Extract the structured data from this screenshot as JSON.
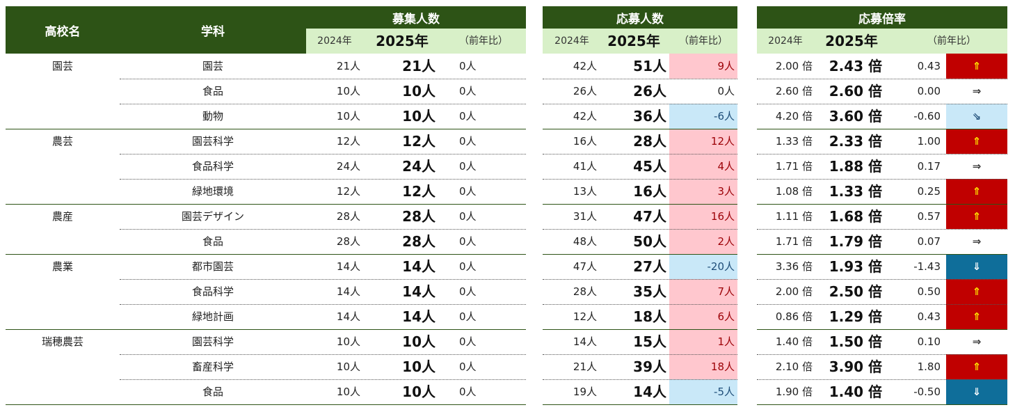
{
  "headers": {
    "school": "高校名",
    "dept": "学科",
    "recruit": "募集人数",
    "applicants": "応募人数",
    "ratio": "応募倍率",
    "y2024": "2024年",
    "y2025": "2025年",
    "yoy": "（前年比）"
  },
  "colors": {
    "header_bg": "#2d5316",
    "subheader_bg": "#d8f0c8",
    "increase_bg": "#ffc7ce",
    "decrease_bg": "#c9e8f8",
    "ratio_up_bg": "#c00000",
    "ratio_down_bg": "#0f6e9a"
  },
  "rows": [
    {
      "school": "園芸",
      "dept": "園芸",
      "r24": "21人",
      "r25": "21人",
      "rd": "0人",
      "a24": "42人",
      "a25": "51人",
      "ad": "9人",
      "at": "up",
      "x24": "2.00 倍",
      "x25": "2.43 倍",
      "xd": "0.43",
      "arrow": "⇑",
      "xt": "up"
    },
    {
      "school": "",
      "dept": "食品",
      "r24": "10人",
      "r25": "10人",
      "rd": "0人",
      "a24": "26人",
      "a25": "26人",
      "ad": "0人",
      "at": "none",
      "x24": "2.60 倍",
      "x25": "2.60 倍",
      "xd": "0.00",
      "arrow": "⇒",
      "xt": "none"
    },
    {
      "school": "",
      "dept": "動物",
      "r24": "10人",
      "r25": "10人",
      "rd": "0人",
      "a24": "42人",
      "a25": "36人",
      "ad": "-6人",
      "at": "down",
      "x24": "4.20 倍",
      "x25": "3.60 倍",
      "xd": "-0.60",
      "arrow": "⇘",
      "xt": "light"
    },
    {
      "school": "農芸",
      "dept": "園芸科学",
      "r24": "12人",
      "r25": "12人",
      "rd": "0人",
      "a24": "16人",
      "a25": "28人",
      "ad": "12人",
      "at": "up",
      "x24": "1.33 倍",
      "x25": "2.33 倍",
      "xd": "1.00",
      "arrow": "⇑",
      "xt": "up"
    },
    {
      "school": "",
      "dept": "食品科学",
      "r24": "24人",
      "r25": "24人",
      "rd": "0人",
      "a24": "41人",
      "a25": "45人",
      "ad": "4人",
      "at": "up",
      "x24": "1.71 倍",
      "x25": "1.88 倍",
      "xd": "0.17",
      "arrow": "⇒",
      "xt": "none"
    },
    {
      "school": "",
      "dept": "緑地環境",
      "r24": "12人",
      "r25": "12人",
      "rd": "0人",
      "a24": "13人",
      "a25": "16人",
      "ad": "3人",
      "at": "up",
      "x24": "1.08 倍",
      "x25": "1.33 倍",
      "xd": "0.25",
      "arrow": "⇑",
      "xt": "up"
    },
    {
      "school": "農産",
      "dept": "園芸デザイン",
      "r24": "28人",
      "r25": "28人",
      "rd": "0人",
      "a24": "31人",
      "a25": "47人",
      "ad": "16人",
      "at": "up",
      "x24": "1.11 倍",
      "x25": "1.68 倍",
      "xd": "0.57",
      "arrow": "⇑",
      "xt": "up"
    },
    {
      "school": "",
      "dept": "食品",
      "r24": "28人",
      "r25": "28人",
      "rd": "0人",
      "a24": "48人",
      "a25": "50人",
      "ad": "2人",
      "at": "up",
      "x24": "1.71 倍",
      "x25": "1.79 倍",
      "xd": "0.07",
      "arrow": "⇒",
      "xt": "none"
    },
    {
      "school": "農業",
      "dept": "都市園芸",
      "r24": "14人",
      "r25": "14人",
      "rd": "0人",
      "a24": "47人",
      "a25": "27人",
      "ad": "-20人",
      "at": "down",
      "x24": "3.36 倍",
      "x25": "1.93 倍",
      "xd": "-1.43",
      "arrow": "⇓",
      "xt": "down"
    },
    {
      "school": "",
      "dept": "食品科学",
      "r24": "14人",
      "r25": "14人",
      "rd": "0人",
      "a24": "28人",
      "a25": "35人",
      "ad": "7人",
      "at": "up",
      "x24": "2.00 倍",
      "x25": "2.50 倍",
      "xd": "0.50",
      "arrow": "⇑",
      "xt": "up"
    },
    {
      "school": "",
      "dept": "緑地計画",
      "r24": "14人",
      "r25": "14人",
      "rd": "0人",
      "a24": "12人",
      "a25": "18人",
      "ad": "6人",
      "at": "up",
      "x24": "0.86 倍",
      "x25": "1.29 倍",
      "xd": "0.43",
      "arrow": "⇑",
      "xt": "up"
    },
    {
      "school": "瑞穂農芸",
      "dept": "園芸科学",
      "r24": "10人",
      "r25": "10人",
      "rd": "0人",
      "a24": "14人",
      "a25": "15人",
      "ad": "1人",
      "at": "up",
      "x24": "1.40 倍",
      "x25": "1.50 倍",
      "xd": "0.10",
      "arrow": "⇒",
      "xt": "none"
    },
    {
      "school": "",
      "dept": "畜産科学",
      "r24": "10人",
      "r25": "10人",
      "rd": "0人",
      "a24": "21人",
      "a25": "39人",
      "ad": "18人",
      "at": "up",
      "x24": "2.10 倍",
      "x25": "3.90 倍",
      "xd": "1.80",
      "arrow": "⇑",
      "xt": "up"
    },
    {
      "school": "",
      "dept": "食品",
      "r24": "10人",
      "r25": "10人",
      "rd": "0人",
      "a24": "19人",
      "a25": "14人",
      "ad": "-5人",
      "at": "down",
      "x24": "1.90 倍",
      "x25": "1.40 倍",
      "xd": "-0.50",
      "arrow": "⇓",
      "xt": "down"
    }
  ]
}
